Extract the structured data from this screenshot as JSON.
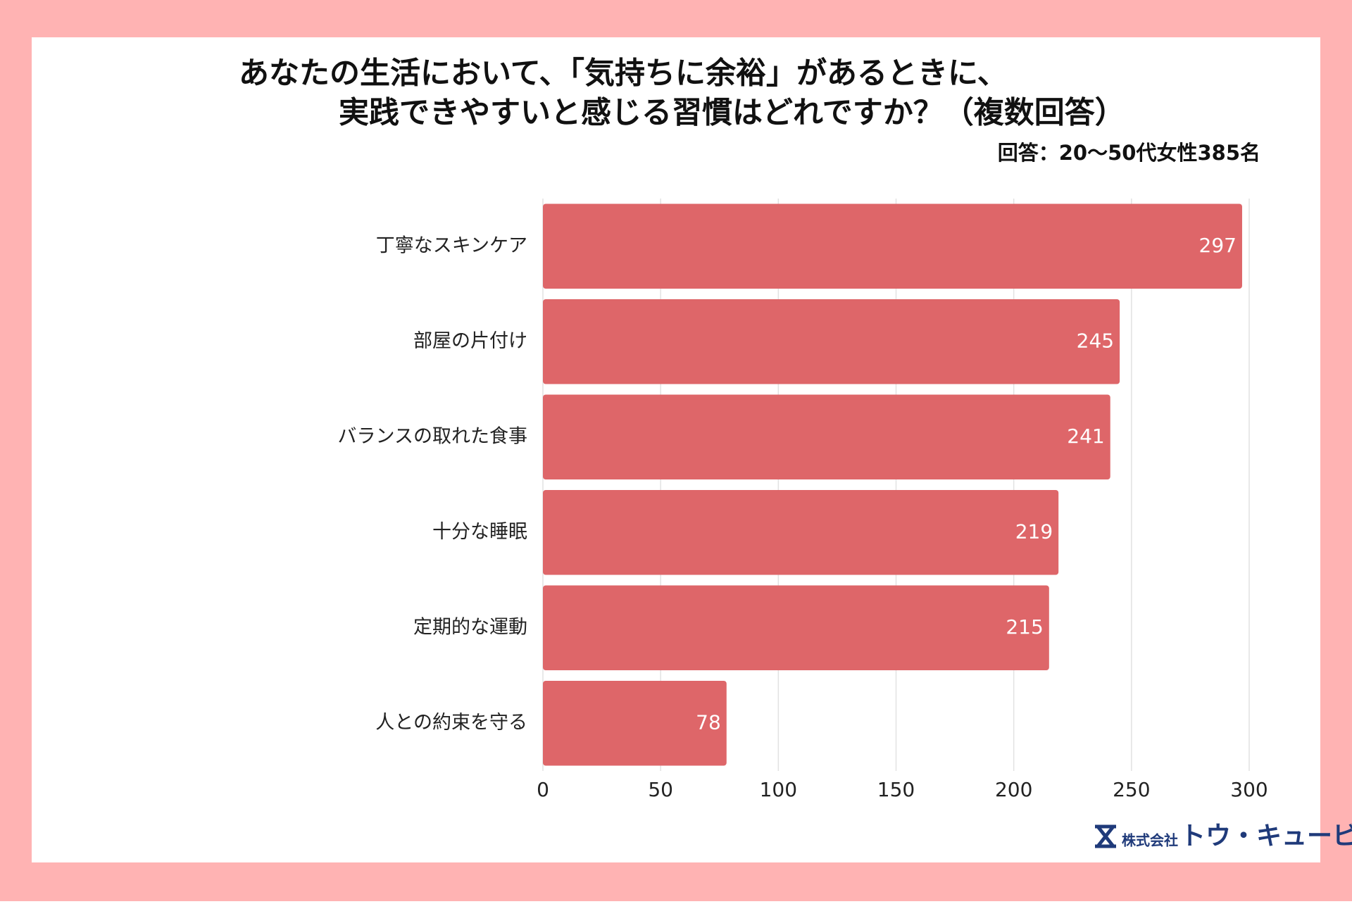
{
  "chart_data": {
    "type": "bar",
    "orientation": "horizontal",
    "title": [
      "あなたの生活において、「気持ちに余裕」があるときに、",
      "実践できやすいと感じる習慣はどれですか？（複数回答）"
    ],
    "subtitle": "回答：20〜50代女性385名",
    "categories": [
      "丁寧なスキンケア",
      "部屋の片付け",
      "バランスの取れた食事",
      "十分な睡眠",
      "定期的な運動",
      "人との約束を守る"
    ],
    "values": [
      297,
      245,
      241,
      219,
      215,
      78
    ],
    "color": "#de6669",
    "xlim": [
      0,
      300
    ],
    "xticks": [
      0,
      50,
      100,
      150,
      200,
      250,
      300
    ],
    "grid": true
  },
  "logo": {
    "prefix": "株式会社",
    "name": "トウ・キュービー"
  }
}
